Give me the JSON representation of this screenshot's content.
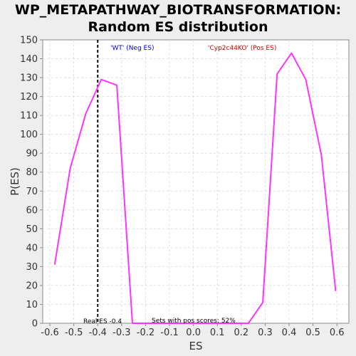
{
  "chart_data": {
    "type": "line",
    "title_line1": "WP_METAPATHWAY_BIOTRANSFORMATION:",
    "title_line2": "Random ES distribution",
    "xlabel": "ES",
    "ylabel": "P(ES)",
    "xlim": [
      -0.63,
      0.65
    ],
    "ylim": [
      0,
      150
    ],
    "x_ticks": [
      -0.6,
      -0.5,
      -0.4,
      -0.3,
      -0.2,
      -0.1,
      0.0,
      0.1,
      0.2,
      0.3,
      0.4,
      0.5,
      0.6
    ],
    "x_tick_labels": [
      "-0.6",
      "-0.5",
      "-0.4",
      "-0.3",
      "-0.2",
      "-0.1",
      "0.0",
      "0.1",
      "0.2",
      "0.3",
      "0.4",
      "0.5",
      "0.6"
    ],
    "y_ticks": [
      0,
      10,
      20,
      30,
      40,
      50,
      60,
      70,
      80,
      90,
      100,
      110,
      120,
      130,
      140,
      150
    ],
    "y_tick_labels": [
      "0",
      "10",
      "20",
      "30",
      "40",
      "50",
      "60",
      "70",
      "80",
      "90",
      "100",
      "110",
      "120",
      "130",
      "140",
      "150"
    ],
    "grid": true,
    "series": [
      {
        "color": "#ff33ff",
        "x": [
          -0.58,
          -0.515,
          -0.45,
          -0.385,
          -0.32,
          -0.255,
          0.23,
          0.29,
          0.35,
          0.41,
          0.47,
          0.535,
          0.595
        ],
        "y": [
          31,
          82,
          111,
          129,
          126,
          0,
          0,
          11,
          132,
          143,
          129,
          89,
          17
        ]
      }
    ],
    "real_es": {
      "value": -0.4,
      "label": "Real ES -0.4",
      "color": "#000000"
    },
    "annotations": {
      "neg_label": "'WT' (Neg ES)",
      "neg_color": "#0000cc",
      "pos_label": "'Cyp2c44KO' (Pos ES)",
      "pos_color": "#cc0000",
      "sets_label": "Sets with pos scores: 52%"
    },
    "colors": {
      "plot_background": "#ffffff",
      "page_background": "#eeeeee",
      "grid": "#dddddd"
    }
  }
}
